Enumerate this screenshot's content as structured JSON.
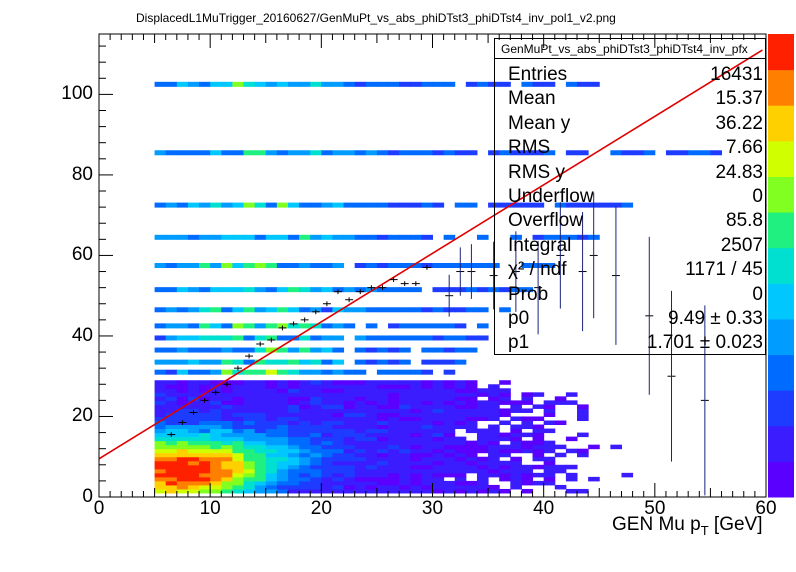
{
  "title": "DisplacedL1MuTrigger_20160627/GenMuPt_vs_abs_phiDTst3_phiDTst4_inv_pol1_v2.png",
  "stats": {
    "name": "GenMuPt_vs_abs_phiDTst3_phiDTst4_inv_pfx",
    "rows": [
      {
        "label": "Entries",
        "value": "16431"
      },
      {
        "label": "Mean",
        "value": "15.37"
      },
      {
        "label": "Mean y",
        "value": "36.22"
      },
      {
        "label": "RMS",
        "value": "7.66"
      },
      {
        "label": "RMS y",
        "value": "24.83"
      },
      {
        "label": "Underflow",
        "value": "0"
      },
      {
        "label": "Overflow",
        "value": "85.8"
      },
      {
        "label": "Integral",
        "value": "2507"
      },
      {
        "label": "χ² / ndf",
        "value": "1171 / 45"
      },
      {
        "label": "Prob",
        "value": "0"
      },
      {
        "label": "p0",
        "value": "9.49 ± 0.33"
      },
      {
        "label": "p1",
        "value": "1.701 ± 0.023"
      }
    ]
  },
  "chart_data": {
    "type": "heatmap",
    "xlabel": "GEN Mu p_T [GeV]",
    "xlim": [
      0,
      60
    ],
    "ylim": [
      0,
      115
    ],
    "x_ticks": [
      "0",
      "10",
      "20",
      "30",
      "40",
      "50",
      "60"
    ],
    "y_ticks": [
      "0",
      "20",
      "40",
      "60",
      "80",
      "100"
    ],
    "fit": {
      "p0": 9.49,
      "p1": 1.701,
      "color": "#e00000"
    },
    "profile_points": [
      {
        "x": 6.5,
        "y": 15.5
      },
      {
        "x": 7.5,
        "y": 18.5
      },
      {
        "x": 8.5,
        "y": 21
      },
      {
        "x": 9.5,
        "y": 24
      },
      {
        "x": 10.5,
        "y": 26
      },
      {
        "x": 11.5,
        "y": 28
      },
      {
        "x": 12.5,
        "y": 32
      },
      {
        "x": 13.5,
        "y": 35
      },
      {
        "x": 14.5,
        "y": 38
      },
      {
        "x": 15.5,
        "y": 39
      },
      {
        "x": 16.5,
        "y": 42
      },
      {
        "x": 17.5,
        "y": 43
      },
      {
        "x": 18.5,
        "y": 44
      },
      {
        "x": 19.5,
        "y": 46
      },
      {
        "x": 20.5,
        "y": 48
      },
      {
        "x": 21.5,
        "y": 51
      },
      {
        "x": 22.5,
        "y": 49
      },
      {
        "x": 23.5,
        "y": 51
      },
      {
        "x": 24.5,
        "y": 52
      },
      {
        "x": 25.5,
        "y": 52
      },
      {
        "x": 26.5,
        "y": 54
      },
      {
        "x": 27.5,
        "y": 53
      },
      {
        "x": 28.5,
        "y": 53
      },
      {
        "x": 29.5,
        "y": 57
      },
      {
        "x": 31.5,
        "y": 50
      },
      {
        "x": 32.5,
        "y": 56
      },
      {
        "x": 33.5,
        "y": 56
      },
      {
        "x": 35.5,
        "y": 55
      },
      {
        "x": 37.5,
        "y": 56
      },
      {
        "x": 39.5,
        "y": 52
      },
      {
        "x": 41.5,
        "y": 60
      },
      {
        "x": 43.5,
        "y": 56
      },
      {
        "x": 44.5,
        "y": 60
      },
      {
        "x": 46.5,
        "y": 55
      },
      {
        "x": 49.5,
        "y": 45
      },
      {
        "x": 51.5,
        "y": 30
      },
      {
        "x": 54.5,
        "y": 24
      }
    ],
    "band_levels": [
      {
        "y": 102.5,
        "x_end": 47
      },
      {
        "y": 85.5,
        "x_end": 56
      },
      {
        "y": 72.5,
        "x_end": 48
      },
      {
        "y": 64.5,
        "x_end": 45
      },
      {
        "y": 57.5,
        "x_end": 41
      },
      {
        "y": 51.5,
        "x_end": 39
      },
      {
        "y": 46.5,
        "x_end": 37
      },
      {
        "y": 42.5,
        "x_end": 35
      },
      {
        "y": 39.5,
        "x_end": 35
      },
      {
        "y": 36.5,
        "x_end": 34
      },
      {
        "y": 33.5,
        "x_end": 33
      },
      {
        "y": 31,
        "x_end": 32
      }
    ],
    "palette": [
      "#5a00ff",
      "#3a1cff",
      "#1e3cff",
      "#006cff",
      "#009cff",
      "#00c8ff",
      "#00e0d0",
      "#20f080",
      "#80ff20",
      "#d0ff00",
      "#ffd000",
      "#ff8000",
      "#ff2000"
    ]
  }
}
